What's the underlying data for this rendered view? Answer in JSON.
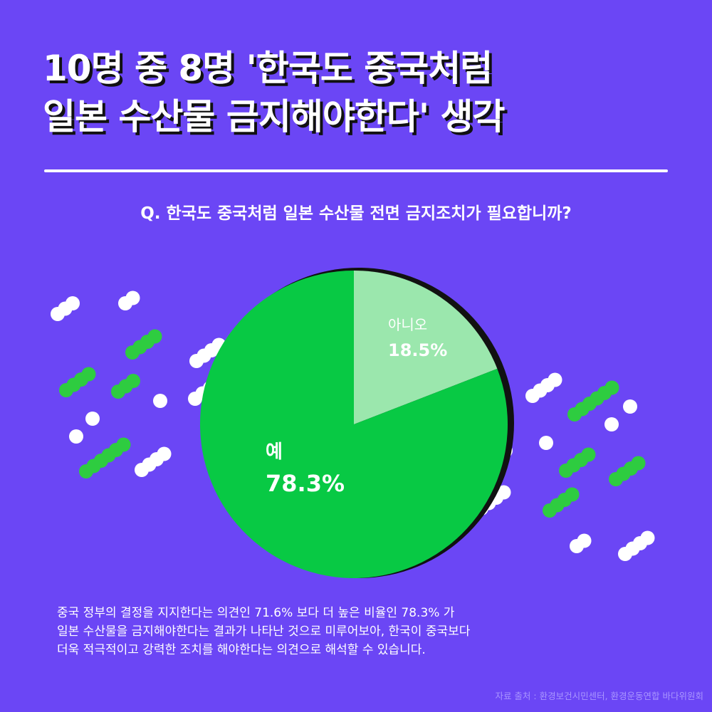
{
  "title": {
    "line1": "10명 중 8명 '한국도 중국처럼",
    "line2": "일본 수산물 금지해야한다' 생각"
  },
  "question": "Q. 한국도 중국처럼 일본 수산물 전면 금지조치가 필요합니까?",
  "chart_data": {
    "type": "pie",
    "categories": [
      "아니오",
      "예"
    ],
    "values": [
      18.5,
      78.3
    ],
    "value_labels": [
      "18.5%",
      "78.3%"
    ],
    "colors": [
      "#9be7ad",
      "#08c944"
    ]
  },
  "note": {
    "line1": "중국 정부의 결정을 지지한다는 의견인 71.6% 보다 더 높은 비율인 78.3% 가",
    "line2": "일본 수산물을 금지해야한다는 결과가 나타난 것으로 미루어보아, 한국이 중국보다",
    "line3": "더욱 적극적이고 강력한 조치를 해야한다는 의견으로 해석할 수 있습니다."
  },
  "source": "자료 출처 : 환경보건시민센터, 환경운동연합 바다위원회",
  "colors": {
    "background": "#6b46f5",
    "dot_green": "#2ecc40",
    "dot_white": "#ffffff"
  }
}
